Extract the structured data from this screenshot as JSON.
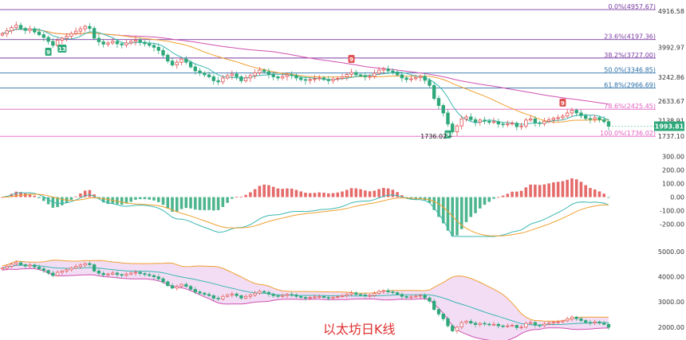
{
  "colors": {
    "up": "#e05050",
    "down": "#2ea87a",
    "fib_purple": "#7a3aa0",
    "fib_blue": "#2a6fa8",
    "fib_pink": "#e060c0",
    "ma_fast": "#3ab7b0",
    "ma_mid": "#f0a030",
    "ma_slow": "#d050b0",
    "price_box": "#2ea87a",
    "marker_red": "#e05050",
    "marker_green": "#2ea87a",
    "boll_fill": "#f1d9f4"
  },
  "watermark": "以太坊日K线",
  "chart_data": [
    {
      "type": "candlestick",
      "panel": "price",
      "y_ticks": [
        "4916.58",
        "3992.97",
        "3242.86",
        "2633.67",
        "2138.91",
        "1737.10"
      ],
      "ylim": [
        1700,
        5000
      ],
      "current_price": "1993.81",
      "low_label": "1736.02",
      "fib_levels": [
        {
          "label": "0.0%(4957.67)",
          "value": 4957.67
        },
        {
          "label": "23.6%(4197.36)",
          "value": 4197.36
        },
        {
          "label": "38.2%(3727.00)",
          "value": 3727.0
        },
        {
          "label": "50.0%(3346.85)",
          "value": 3346.85
        },
        {
          "label": "61.8%(2966.69)",
          "value": 2966.69
        },
        {
          "label": "78.6%(2425.45)",
          "value": 2425.45
        },
        {
          "label": "100.0%(1736.02)",
          "value": 1736.02
        }
      ],
      "markers": [
        {
          "index": 10,
          "label": "9",
          "position": "below",
          "color": "green"
        },
        {
          "index": 13,
          "label": "13",
          "position": "below",
          "color": "green"
        },
        {
          "index": 76,
          "label": "9",
          "position": "above",
          "color": "red"
        },
        {
          "index": 97,
          "label": "9",
          "position": "below",
          "color": "green"
        },
        {
          "index": 122,
          "label": "9",
          "position": "above",
          "color": "red"
        }
      ],
      "closes": [
        4350,
        4420,
        4500,
        4560,
        4480,
        4430,
        4470,
        4390,
        4320,
        4250,
        4150,
        4050,
        4180,
        4230,
        4280,
        4350,
        4410,
        4470,
        4530,
        4480,
        4230,
        4140,
        4080,
        4110,
        4150,
        4090,
        4060,
        4110,
        4150,
        4180,
        4130,
        4090,
        4050,
        4000,
        3920,
        3800,
        3650,
        3550,
        3620,
        3700,
        3620,
        3500,
        3400,
        3350,
        3300,
        3250,
        3150,
        3120,
        3220,
        3280,
        3320,
        3250,
        3150,
        3220,
        3280,
        3350,
        3420,
        3380,
        3310,
        3250,
        3220,
        3260,
        3300,
        3280,
        3220,
        3180,
        3160,
        3180,
        3200,
        3220,
        3180,
        3150,
        3190,
        3210,
        3250,
        3310,
        3360,
        3300,
        3280,
        3250,
        3260,
        3340,
        3420,
        3450,
        3400,
        3370,
        3300,
        3220,
        3180,
        3200,
        3230,
        3260,
        3160,
        3030,
        2700,
        2520,
        2330,
        2050,
        1850,
        2000,
        2180,
        2230,
        2160,
        2100,
        2150,
        2120,
        2090,
        2110,
        2050,
        2030,
        2050,
        2070,
        1980,
        2000,
        2150,
        2180,
        2080,
        2060,
        2120,
        2160,
        2200,
        2210,
        2250,
        2330,
        2400,
        2330,
        2260,
        2190,
        2170,
        2210,
        2160,
        2110,
        1993.81
      ]
    },
    {
      "type": "bar",
      "panel": "macd",
      "y_ticks": [
        "300.00",
        "200.00",
        "100.00",
        "0.00",
        "-100.00",
        "-200.00"
      ],
      "ylim": [
        -290,
        320
      ]
    },
    {
      "type": "area",
      "panel": "bollinger",
      "y_ticks": [
        "5000.00",
        "4000.00",
        "3000.00",
        "2000.00"
      ],
      "ylim": [
        1550,
        5350
      ]
    }
  ]
}
